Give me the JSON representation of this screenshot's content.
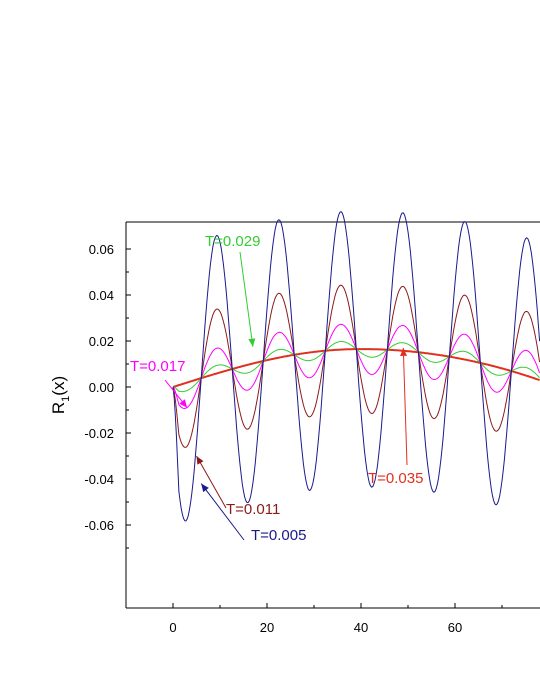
{
  "chart_data": {
    "type": "line",
    "ylabel_main": "R",
    "ylabel_sub": "1",
    "ylabel_tail": "(x)",
    "xlim": [
      -10,
      78
    ],
    "ylim": [
      -0.07,
      0.07
    ],
    "x_ticks": [
      {
        "value": 0,
        "label": "0"
      },
      {
        "value": 20,
        "label": "20"
      },
      {
        "value": 40,
        "label": "40"
      },
      {
        "value": 60,
        "label": "60"
      }
    ],
    "y_ticks": [
      {
        "value": 0.06,
        "label": "0.06"
      },
      {
        "value": 0.04,
        "label": "0.04"
      },
      {
        "value": 0.02,
        "label": "0.02"
      },
      {
        "value": 0.0,
        "label": "0.00"
      },
      {
        "value": -0.02,
        "label": "-0.02"
      },
      {
        "value": -0.04,
        "label": "-0.04"
      },
      {
        "value": -0.06,
        "label": "-0.06"
      }
    ],
    "series": [
      {
        "name": "T=0.005",
        "color": "#1a1a8c",
        "amplitude": 0.06,
        "period": 13.2,
        "damping": 0
      },
      {
        "name": "T=0.011",
        "color": "#8b1a1a",
        "amplitude": 0.028,
        "period": 13.2,
        "damping": 0
      },
      {
        "name": "T=0.017",
        "color": "#ff00ff",
        "amplitude": 0.011,
        "period": 13.2,
        "damping": 0
      },
      {
        "name": "T=0.029",
        "color": "#33cc33",
        "amplitude": 0.0035,
        "period": 13.2,
        "damping": 0
      },
      {
        "name": "T=0.035",
        "color": "#e03020",
        "amplitude": 0,
        "period": 13.2,
        "damping": 0
      }
    ],
    "trend": {
      "x_end": 78,
      "peak": 0.0165,
      "peak_x": 40,
      "end_value": 0.003
    },
    "annotations": [
      {
        "text": "T=0.029",
        "color": "#33cc33",
        "target": [
          17,
          0.0175
        ]
      },
      {
        "text": "T=0.017",
        "color": "#ff00ff",
        "target": [
          3,
          -0.009
        ]
      },
      {
        "text": "T=0.011",
        "color": "#8b1a1a",
        "target": [
          5,
          -0.03
        ]
      },
      {
        "text": "T=0.005",
        "color": "#1a1a8c",
        "target": [
          6,
          -0.042
        ]
      },
      {
        "text": "T=0.035",
        "color": "#e03020",
        "target": [
          49,
          0.017
        ]
      }
    ]
  }
}
